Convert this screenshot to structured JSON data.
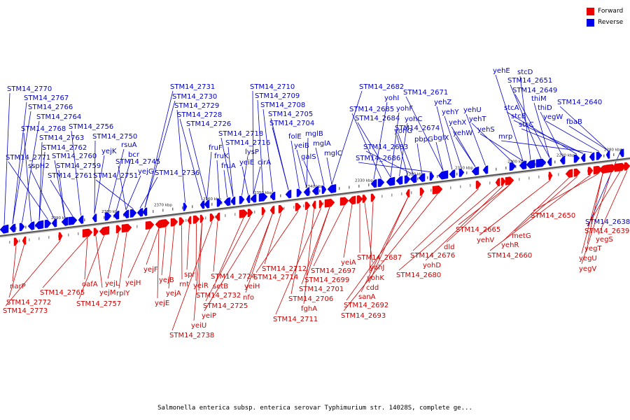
{
  "legend": {
    "forward": {
      "label": "Forward",
      "color": "#ee0000"
    },
    "reverse": {
      "label": "Reverse",
      "color": "#0000ee"
    }
  },
  "caption": "Salmonella enterica subsp. enterica serovar Typhimurium str. 14028S, complete ge...",
  "ticks": [
    "2390 kbp",
    "2380 kbp",
    "2370 kbp",
    "2360 kbp",
    "2350 kbp",
    "2340 kbp",
    "2330 kbp",
    "2320 kbp",
    "2310 kbp",
    "2300 kbp",
    "2290 kbp",
    "2280 kbp"
  ],
  "reverse_labels": [
    "STM14_2770",
    "STM14_2767",
    "STM14_2766",
    "STM14_2764",
    "STM14_2768",
    "STM14_2763",
    "STM14_2762",
    "STM14_2771",
    "sspH2",
    "STM14_2760",
    "STM14_2759",
    "STM14_2761",
    "STM14_2756",
    "STM14_2750",
    "yejK",
    "rsuA",
    "bcr",
    "STM14_2745",
    "yejG",
    "STM14_2751",
    "STM14_2736",
    "STM14_2731",
    "STM14_2730",
    "STM14_2729",
    "STM14_2728",
    "STM14_2726",
    "fruF",
    "fruK",
    "fruA",
    "STM14_2718",
    "STM14_2716",
    "lysP",
    "yeiE",
    "cirA",
    "STM14_2710",
    "STM14_2709",
    "STM14_2708",
    "STM14_2705",
    "STM14_2704",
    "folE",
    "yeiB",
    "mglB",
    "galS",
    "mglA",
    "mglC",
    "STM14_2682",
    "yohI",
    "STM14_2685",
    "yohF",
    "STM14_2684",
    "yohC",
    "yohG",
    "STM14_2674",
    "STM14_2683",
    "pbpG",
    "STM14_2686",
    "STM14_2671",
    "bglX",
    "yehZ",
    "yehY",
    "yehX",
    "yehW",
    "yehU",
    "yehT",
    "yehS",
    "yehE",
    "stcD",
    "STM14_2651",
    "STM14_2649",
    "thiM",
    "thiD",
    "stcA",
    "stcB",
    "stcC",
    "mrp",
    "yegW",
    "STM14_2640",
    "fbaB",
    "STM14_2638"
  ],
  "forward_labels": [
    "narP",
    "STM14_2772",
    "STM14_2773",
    "STM14_2765",
    "oafA",
    "yejM",
    "STM14_2757",
    "yejL",
    "rplY",
    "yejH",
    "yejF",
    "yejE",
    "yejB",
    "yejA",
    "rnt",
    "spr",
    "yeiR",
    "STM14_2732",
    "yeiU",
    "STM14_2738",
    "STM14_2724",
    "setB",
    "STM14_2725",
    "yeiP",
    "yeiH",
    "nfo",
    "STM14_2712",
    "STM14_2714",
    "STM14_2706",
    "fghA",
    "STM14_2711",
    "STM14_2701",
    "STM14_2699",
    "STM14_2697",
    "yeiA",
    "STM14_2687",
    "yohJ",
    "yohK",
    "cdd",
    "sanA",
    "STM14_2692",
    "STM14_2693",
    "STM14_2676",
    "STM14_2680",
    "yohD",
    "dld",
    "STM14_2665",
    "yehV",
    "yehR",
    "metG",
    "STM14_2660",
    "STM14_2650",
    "yegT",
    "yegU",
    "yegV",
    "STM14_2639",
    "yegS"
  ]
}
